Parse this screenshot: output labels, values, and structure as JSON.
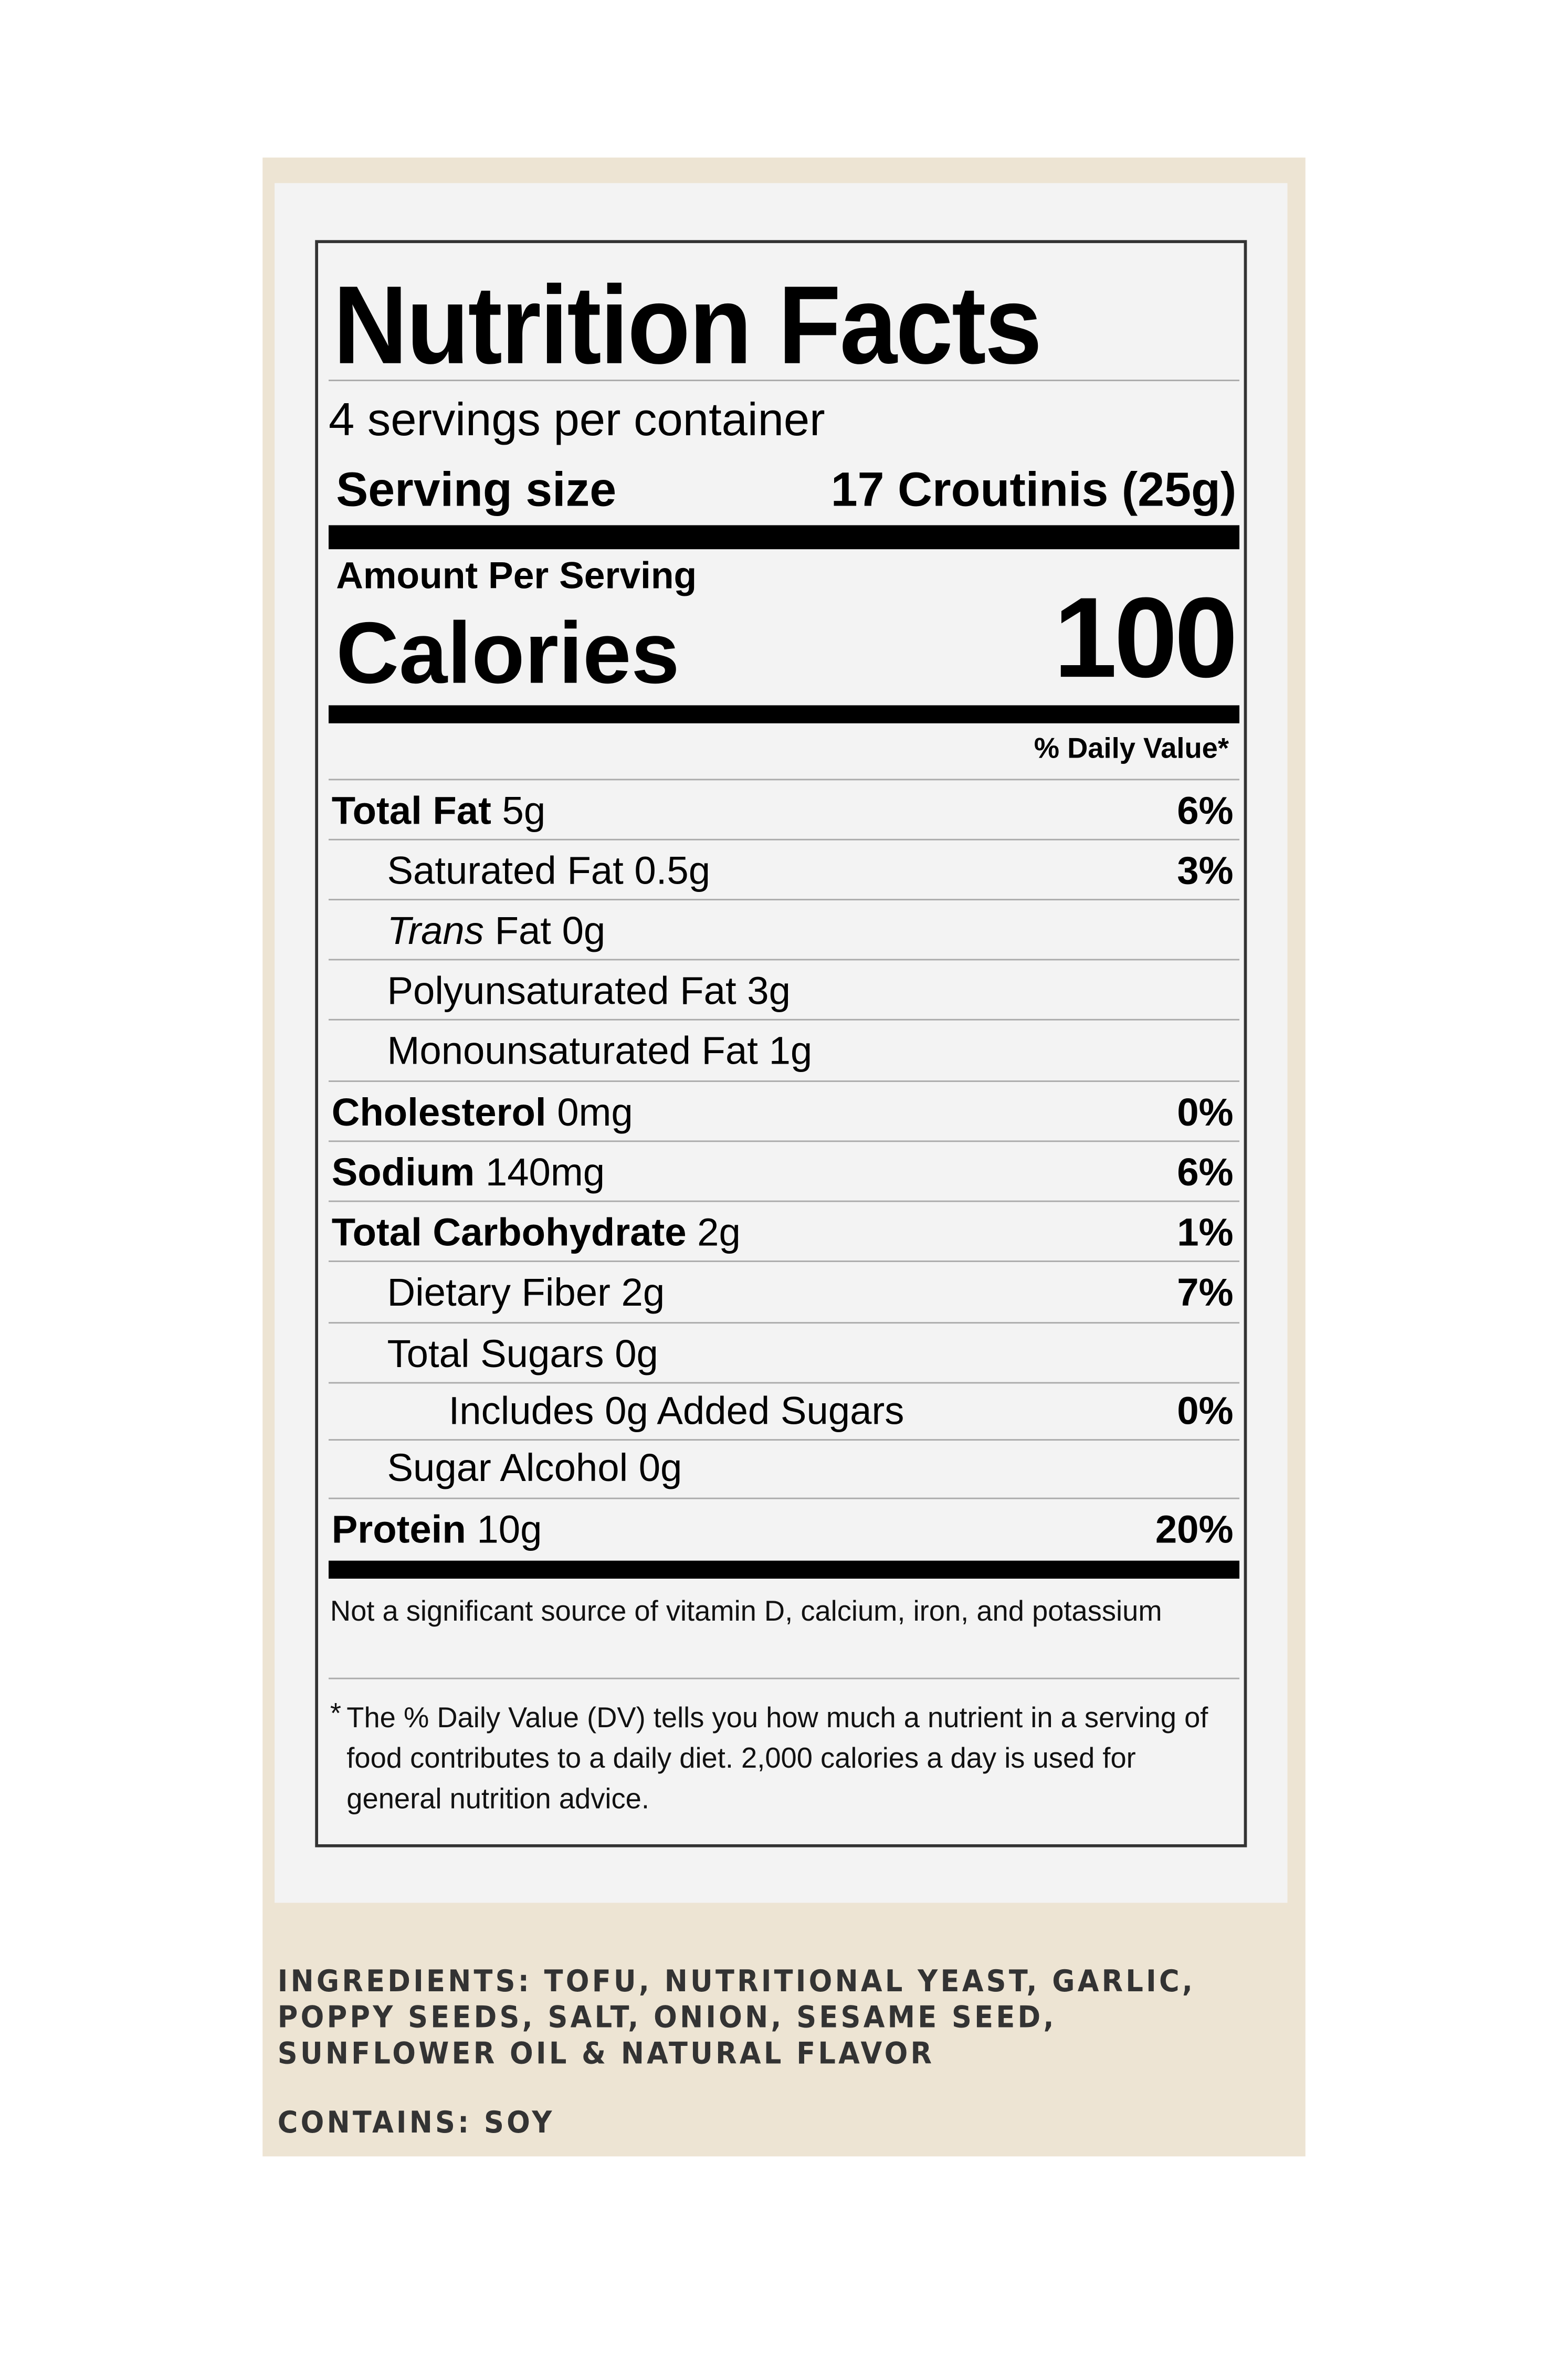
{
  "colors": {
    "background": "#ede4d3",
    "panel": "#f3f3f3",
    "text": "#000000",
    "ingredients_text": "#333333"
  },
  "label": {
    "title": "Nutrition  Facts",
    "servings": "4 servings per container",
    "serving_size_label": "Serving size",
    "serving_size_value": "17 Croutinis (25g)",
    "amount_per_serving": "Amount Per Serving",
    "calories_label": "Calories",
    "calories_value": "100",
    "daily_value_header": "% Daily Value*",
    "rows": [
      {
        "name": "Total Fat",
        "amount": " 5g",
        "dv": "6%"
      },
      {
        "name": "Saturated Fat 0.5g",
        "amount": "",
        "dv": "3%"
      },
      {
        "name": "Trans",
        "amount": " Fat 0g",
        "dv": ""
      },
      {
        "name": "Polyunsaturated Fat 3g",
        "amount": "",
        "dv": ""
      },
      {
        "name": "Monounsaturated Fat 1g",
        "amount": "",
        "dv": ""
      },
      {
        "name": "Cholesterol",
        "amount": " 0mg",
        "dv": "0%"
      },
      {
        "name": "Sodium",
        "amount": " 140mg",
        "dv": "6%"
      },
      {
        "name": "Total Carbohydrate",
        "amount": " 2g",
        "dv": "1%"
      },
      {
        "name": "Dietary Fiber 2g",
        "amount": "",
        "dv": "7%"
      },
      {
        "name": "Total Sugars 0g",
        "amount": "",
        "dv": ""
      },
      {
        "name": "Includes 0g Added Sugars",
        "amount": "",
        "dv": "0%"
      },
      {
        "name": "Sugar Alcohol 0g",
        "amount": "",
        "dv": ""
      },
      {
        "name": "Protein",
        "amount": " 10g",
        "dv": "20%"
      }
    ],
    "footnote_vitamins": "Not a significant source of vitamin D, calcium, iron, and potassium",
    "footnote_dv_star": "*",
    "footnote_dv": "The % Daily Value (DV) tells you how much a nutrient in a serving of food contributes to a daily diet. 2,000 calories a day is used for general nutrition advice."
  },
  "ingredients": {
    "line1": "INGREDIENTS: TOFU, NUTRITIONAL YEAST, GARLIC,",
    "line2": "POPPY SEEDS, SALT, ONION, SESAME SEED,",
    "line3": "SUNFLOWER OIL & NATURAL FLAVOR",
    "contains": "CONTAINS: SOY"
  }
}
